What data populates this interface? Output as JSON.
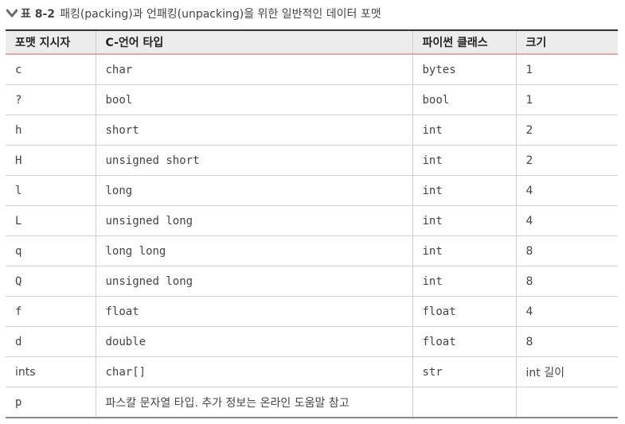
{
  "caption": {
    "icon": "chevron-down-icon",
    "number": "표 8-2",
    "text": "패킹(packing)과 언패킹(unpacking)을 위한 일반적인 데이터 포맷"
  },
  "table": {
    "headers": [
      "포맷 지시자",
      "C-언어 타입",
      "파이썬 클래스",
      "크기"
    ],
    "rows": [
      [
        "c",
        "char",
        "bytes",
        "1"
      ],
      [
        "?",
        "bool",
        "bool",
        "1"
      ],
      [
        "h",
        "short",
        "int",
        "2"
      ],
      [
        "H",
        "unsigned short",
        "int",
        "2"
      ],
      [
        "l",
        "long",
        "int",
        "4"
      ],
      [
        "L",
        "unsigned long",
        "int",
        "4"
      ],
      [
        "q",
        "long long",
        "int",
        "8"
      ],
      [
        "Q",
        "unsigned long",
        "int",
        "8"
      ],
      [
        "f",
        "float",
        "float",
        "4"
      ],
      [
        "d",
        "double",
        "float",
        "8"
      ],
      [
        "ints",
        "char[]",
        "str",
        "int 길이"
      ],
      [
        "p",
        "파스칼 문자열 타입. 추가 정보는 온라인 도움말 참고",
        "",
        ""
      ]
    ]
  }
}
